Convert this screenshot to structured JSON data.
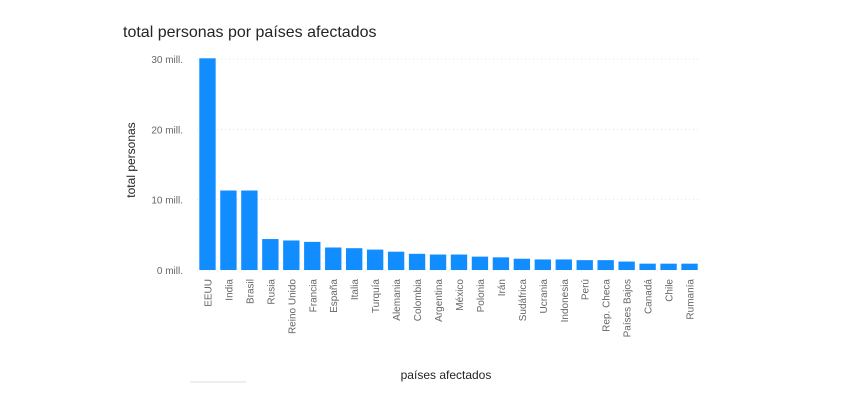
{
  "chart_data": {
    "type": "bar",
    "title": "total personas por países afectados",
    "xlabel": "países afectados",
    "ylabel": "total personas",
    "categories": [
      "EEUU",
      "India",
      "Brasil",
      "Rusia",
      "Reino Unido",
      "Francia",
      "España",
      "Italia",
      "Turquía",
      "Alemania",
      "Colombia",
      "Argentina",
      "México",
      "Polonia",
      "Irán",
      "Sudáfrica",
      "Ucrania",
      "Indonesia",
      "Perú",
      "Rep. Checa",
      "Países Bajos",
      "Canadá",
      "Chile",
      "Rumanía"
    ],
    "values": [
      30.1,
      11.3,
      11.3,
      4.4,
      4.2,
      4.0,
      3.2,
      3.1,
      2.9,
      2.6,
      2.3,
      2.2,
      2.2,
      1.9,
      1.8,
      1.6,
      1.5,
      1.5,
      1.4,
      1.4,
      1.2,
      0.9,
      0.9,
      0.9
    ],
    "ylim": [
      0,
      30
    ],
    "yticks": [
      0,
      10,
      20,
      30
    ],
    "ytick_labels": [
      "0 mill.",
      "10 mill.",
      "20 mill.",
      "30 mill."
    ],
    "unit": "mill.",
    "grid": true,
    "bar_color": "#118DFF",
    "grid_color": "#E1E1E1"
  }
}
